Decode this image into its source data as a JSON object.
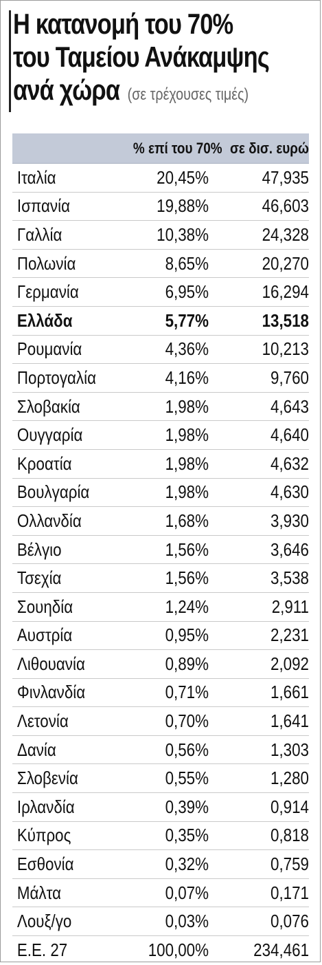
{
  "title": {
    "line1": "Η κατανομή του 70%",
    "line2": "του Ταμείου Ανάκαμψης",
    "line3": "ανά χώρα",
    "subtitle": "(σε τρέχουσες τιμές)"
  },
  "header": {
    "country": "",
    "pct": "% επί του 70%",
    "eur": "σε δισ. ευρώ"
  },
  "rows": [
    {
      "country": "Ιταλία",
      "pct": "20,45%",
      "eur": "47,935"
    },
    {
      "country": "Ισπανία",
      "pct": "19,88%",
      "eur": "46,603"
    },
    {
      "country": "Γαλλία",
      "pct": "10,38%",
      "eur": "24,328"
    },
    {
      "country": "Πολωνία",
      "pct": "8,65%",
      "eur": "20,270"
    },
    {
      "country": "Γερμανία",
      "pct": "6,95%",
      "eur": "16,294"
    },
    {
      "country": "Ελλάδα",
      "pct": "5,77%",
      "eur": "13,518"
    },
    {
      "country": "Ρουμανία",
      "pct": "4,36%",
      "eur": "10,213"
    },
    {
      "country": "Πορτογαλία",
      "pct": "4,16%",
      "eur": "9,760"
    },
    {
      "country": "Σλοβακία",
      "pct": "1,98%",
      "eur": "4,643"
    },
    {
      "country": "Ουγγαρία",
      "pct": "1,98%",
      "eur": "4,640"
    },
    {
      "country": "Κροατία",
      "pct": "1,98%",
      "eur": "4,632"
    },
    {
      "country": "Βουλγαρία",
      "pct": "1,98%",
      "eur": "4,630"
    },
    {
      "country": "Ολλανδία",
      "pct": "1,68%",
      "eur": "3,930"
    },
    {
      "country": "Βέλγιο",
      "pct": "1,56%",
      "eur": "3,646"
    },
    {
      "country": "Τσεχία",
      "pct": "1,56%",
      "eur": "3,538"
    },
    {
      "country": "Σουηδία",
      "pct": "1,24%",
      "eur": "2,911"
    },
    {
      "country": "Αυστρία",
      "pct": "0,95%",
      "eur": "2,231"
    },
    {
      "country": "Λιθουανία",
      "pct": "0,89%",
      "eur": "2,092"
    },
    {
      "country": "Φινλανδία",
      "pct": "0,71%",
      "eur": "1,661"
    },
    {
      "country": "Λετονία",
      "pct": "0,70%",
      "eur": "1,641"
    },
    {
      "country": "Δανία",
      "pct": "0,56%",
      "eur": "1,303"
    },
    {
      "country": "Σλοβενία",
      "pct": "0,55%",
      "eur": "1,280"
    },
    {
      "country": "Ιρλανδία",
      "pct": "0,39%",
      "eur": "0,914"
    },
    {
      "country": "Κύπρος",
      "pct": "0,35%",
      "eur": "0,818"
    },
    {
      "country": "Εσθονία",
      "pct": "0,32%",
      "eur": "0,759"
    },
    {
      "country": "Μάλτα",
      "pct": "0,07%",
      "eur": "0,171"
    },
    {
      "country": "Λουξ/γο",
      "pct": "0,03%",
      "eur": "0,076"
    },
    {
      "country": "Ε.Ε. 27",
      "pct": "100,00%",
      "eur": "234,461"
    }
  ],
  "highlight_row": "Ελλάδα",
  "colors": {
    "header_bg": "#c3cad8",
    "row_divider": "#c9c9c9",
    "text": "#111111",
    "subtitle": "#666666"
  },
  "chart_data": {
    "type": "table",
    "title": "Η κατανομή του 70% του Ταμείου Ανάκαμψης ανά χώρα",
    "subtitle": "(σε τρέχουσες τιμές)",
    "columns": [
      "",
      "% επί του 70%",
      "σε δισ. ευρώ"
    ],
    "categories": [
      "Ιταλία",
      "Ισπανία",
      "Γαλλία",
      "Πολωνία",
      "Γερμανία",
      "Ελλάδα",
      "Ρουμανία",
      "Πορτογαλία",
      "Σλοβακία",
      "Ουγγαρία",
      "Κροατία",
      "Βουλγαρία",
      "Ολλανδία",
      "Βέλγιο",
      "Τσεχία",
      "Σουηδία",
      "Αυστρία",
      "Λιθουανία",
      "Φινλανδία",
      "Λετονία",
      "Δανία",
      "Σλοβενία",
      "Ιρλανδία",
      "Κύπρος",
      "Εσθονία",
      "Μάλτα",
      "Λουξ/γο",
      "Ε.Ε. 27"
    ],
    "series": [
      {
        "name": "% επί του 70%",
        "values": [
          20.45,
          19.88,
          10.38,
          8.65,
          6.95,
          5.77,
          4.36,
          4.16,
          1.98,
          1.98,
          1.98,
          1.98,
          1.68,
          1.56,
          1.56,
          1.24,
          0.95,
          0.89,
          0.71,
          0.7,
          0.56,
          0.55,
          0.39,
          0.35,
          0.32,
          0.07,
          0.03,
          100.0
        ]
      },
      {
        "name": "σε δισ. ευρώ",
        "values": [
          47.935,
          46.603,
          24.328,
          20.27,
          16.294,
          13.518,
          10.213,
          9.76,
          4.643,
          4.64,
          4.632,
          4.63,
          3.93,
          3.646,
          3.538,
          2.911,
          2.231,
          2.092,
          1.661,
          1.641,
          1.303,
          1.28,
          0.914,
          0.818,
          0.759,
          0.171,
          0.076,
          234.461
        ]
      }
    ]
  }
}
